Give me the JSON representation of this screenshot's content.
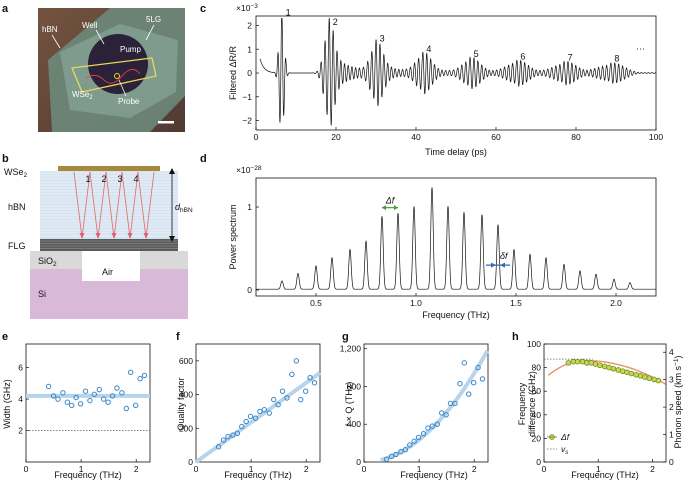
{
  "panels": {
    "a": {
      "label": "a",
      "texts": {
        "hbn": "hBN",
        "well": "Well",
        "flg": "5LG",
        "pump": "Pump",
        "wse2": "WSe",
        "wse2_sub": "2",
        "probe": "Probe"
      },
      "colors": {
        "bg_dark": "#6b3e2e",
        "flake": "#7a9a88",
        "well": "#2a2238"
      }
    },
    "b": {
      "label": "b",
      "texts": {
        "wse2": "WSe",
        "wse2_sub": "2",
        "hbn": "hBN",
        "flg": "FLG",
        "sio2": "SiO",
        "sio2_sub": "2",
        "air": "Air",
        "si": "Si",
        "d": "d",
        "d_sub": "hBN"
      },
      "reflections": [
        "1",
        "2",
        "3",
        "4"
      ],
      "colors": {
        "hbn": "#cfe0f0",
        "wse2": "#a8893c",
        "flg": "#555555",
        "sio2": "#d9d9d9",
        "si": "#d8b8d8",
        "ray": "#e06666"
      }
    },
    "c": {
      "label": "c",
      "scale": "×10",
      "scale_exp": "−3",
      "ylabel": "Filtered ΔR/R",
      "xlabel": "Time delay (ps)",
      "xticks": [
        "0",
        "20",
        "40",
        "60",
        "80",
        "100"
      ],
      "yticks": [
        "2",
        "1",
        "0",
        "−1",
        "−2"
      ],
      "echo_labels": [
        "1",
        "2",
        "3",
        "4",
        "5",
        "6",
        "7",
        "8",
        "···"
      ]
    },
    "d": {
      "label": "d",
      "scale": "×10",
      "scale_exp": "−28",
      "ylabel": "Power spectrum",
      "xlabel": "Frequency (THz)",
      "xticks": [
        "0.5",
        "1.0",
        "1.5",
        "2.0"
      ],
      "yticks": [
        "1",
        "0"
      ],
      "delta_f": "Δf",
      "small_delta_f": "δf"
    },
    "e": {
      "label": "e",
      "ylabel": "Width (GHz)",
      "xlabel": "Frequency (THz)",
      "yticks": [
        "6",
        "4",
        "2"
      ],
      "xticks": [
        "0",
        "1",
        "2"
      ]
    },
    "f": {
      "label": "f",
      "ylabel": "Quality factor",
      "xlabel": "Frequency (THz)",
      "yticks": [
        "600",
        "400",
        "200",
        "0"
      ],
      "xticks": [
        "0",
        "1",
        "2"
      ]
    },
    "g": {
      "label": "g",
      "ylabel": "f × Q (THz)",
      "xlabel": "Frequency (THz)",
      "yticks": [
        "1,200",
        "800",
        "400",
        "0"
      ],
      "xticks": [
        "0",
        "1",
        "2"
      ]
    },
    "h": {
      "label": "h",
      "ylabel_1": "Frequency",
      "ylabel_2": "difference (GHz)",
      "ylabel_right": "Phonon speed (km s",
      "ylabel_right_exp": "−1",
      "xlabel": "Frequency (THz)",
      "yticks": [
        "100",
        "80",
        "60",
        "40",
        "20",
        "0"
      ],
      "yticks_right": [
        "4",
        "3",
        "2",
        "1",
        "0"
      ],
      "xticks": [
        "0",
        "1",
        "2"
      ],
      "legend": {
        "df": "Δf",
        "vs": "v",
        "vs_sub": "s"
      }
    }
  },
  "chart_data": [
    {
      "panel": "c",
      "type": "line",
      "xlabel": "Time delay (ps)",
      "ylabel": "Filtered ΔR/R",
      "xlim": [
        0,
        100
      ],
      "ylim": [
        -2.4,
        2.4
      ],
      "units_multiplier": "1e-3",
      "echo_times": [
        6.4,
        18.2,
        29.9,
        41.6,
        53.4,
        65.1,
        76.9,
        88.6
      ],
      "echo_peak_amplitudes": [
        2.7,
        1.9,
        1.2,
        0.75,
        0.55,
        0.45,
        0.4,
        0.35
      ],
      "echo_labels": [
        "1",
        "2",
        "3",
        "4",
        "5",
        "6",
        "7",
        "8"
      ]
    },
    {
      "panel": "d",
      "type": "line",
      "xlabel": "Frequency (THz)",
      "ylabel": "Power spectrum",
      "xlim": [
        0.2,
        2.2
      ],
      "ylim": [
        0,
        1.35
      ],
      "units_multiplier": "1e-28",
      "peak_frequencies": [
        0.33,
        0.41,
        0.5,
        0.58,
        0.67,
        0.75,
        0.83,
        0.91,
        0.99,
        1.08,
        1.16,
        1.24,
        1.33,
        1.41,
        1.49,
        1.57,
        1.65,
        1.74,
        1.82,
        1.9,
        1.99,
        2.07
      ],
      "peak_heights": [
        0.1,
        0.19,
        0.28,
        0.38,
        0.48,
        0.58,
        0.88,
        0.92,
        1.0,
        1.23,
        1.0,
        0.93,
        0.9,
        0.78,
        0.48,
        0.42,
        0.38,
        0.3,
        0.22,
        0.18,
        0.12,
        0.08
      ]
    },
    {
      "panel": "e",
      "type": "scatter",
      "xlabel": "Frequency (THz)",
      "ylabel": "Width (GHz)",
      "xlim": [
        0,
        2.25
      ],
      "ylim": [
        0,
        7.5
      ],
      "x": [
        0.41,
        0.5,
        0.58,
        0.67,
        0.75,
        0.83,
        0.91,
        0.99,
        1.08,
        1.16,
        1.24,
        1.33,
        1.41,
        1.49,
        1.57,
        1.65,
        1.74,
        1.82,
        1.9,
        1.99,
        2.07,
        2.15
      ],
      "y": [
        4.8,
        4.2,
        4.0,
        4.4,
        3.8,
        3.6,
        4.1,
        3.7,
        4.5,
        3.9,
        4.3,
        4.6,
        4.0,
        3.8,
        4.2,
        4.7,
        4.4,
        3.4,
        5.7,
        3.6,
        5.3,
        5.5
      ],
      "fit_level": 4.2,
      "reference_level": 2.0
    },
    {
      "panel": "f",
      "type": "scatter",
      "xlabel": "Frequency (THz)",
      "ylabel": "Quality factor",
      "xlim": [
        0,
        2.25
      ],
      "ylim": [
        0,
        700
      ],
      "x": [
        0.41,
        0.5,
        0.58,
        0.67,
        0.75,
        0.83,
        0.91,
        0.99,
        1.08,
        1.16,
        1.24,
        1.33,
        1.41,
        1.49,
        1.57,
        1.65,
        1.74,
        1.82,
        1.9,
        1.99,
        2.07,
        2.15
      ],
      "y": [
        90,
        130,
        150,
        160,
        170,
        210,
        240,
        270,
        260,
        300,
        310,
        290,
        370,
        340,
        420,
        380,
        520,
        600,
        370,
        420,
        500,
        470
      ],
      "fit_slope": 235
    },
    {
      "panel": "g",
      "type": "scatter",
      "xlabel": "Frequency (THz)",
      "ylabel": "f × Q (THz)",
      "xlim": [
        0,
        2.25
      ],
      "ylim": [
        0,
        1250
      ],
      "x": [
        0.41,
        0.5,
        0.58,
        0.67,
        0.75,
        0.83,
        0.91,
        0.99,
        1.08,
        1.16,
        1.24,
        1.33,
        1.41,
        1.49,
        1.57,
        1.65,
        1.74,
        1.82,
        1.9,
        1.99,
        2.07,
        2.15
      ],
      "y": [
        30,
        60,
        80,
        110,
        130,
        180,
        220,
        260,
        300,
        360,
        380,
        400,
        520,
        500,
        620,
        620,
        830,
        1050,
        720,
        840,
        1000,
        880
      ],
      "fit_coefficient": 235
    },
    {
      "panel": "h",
      "type": "scatter",
      "xlabel": "Frequency (THz)",
      "ylabel": "Frequency difference (GHz)",
      "ylabel_right": "Phonon speed (km s−1)",
      "xlim": [
        0,
        2.25
      ],
      "ylim": [
        0,
        100
      ],
      "ylim_right": [
        0,
        4.3
      ],
      "x": [
        0.45,
        0.54,
        0.62,
        0.71,
        0.79,
        0.87,
        0.95,
        1.03,
        1.12,
        1.2,
        1.28,
        1.37,
        1.45,
        1.53,
        1.61,
        1.7,
        1.78,
        1.86,
        1.94,
        2.03,
        2.11
      ],
      "y": [
        84,
        85,
        85,
        85,
        84,
        84,
        83,
        82,
        81,
        80,
        79,
        78,
        77,
        76,
        75,
        74,
        73,
        72,
        71,
        70,
        69
      ],
      "vs_level_right": 3.75
    }
  ]
}
